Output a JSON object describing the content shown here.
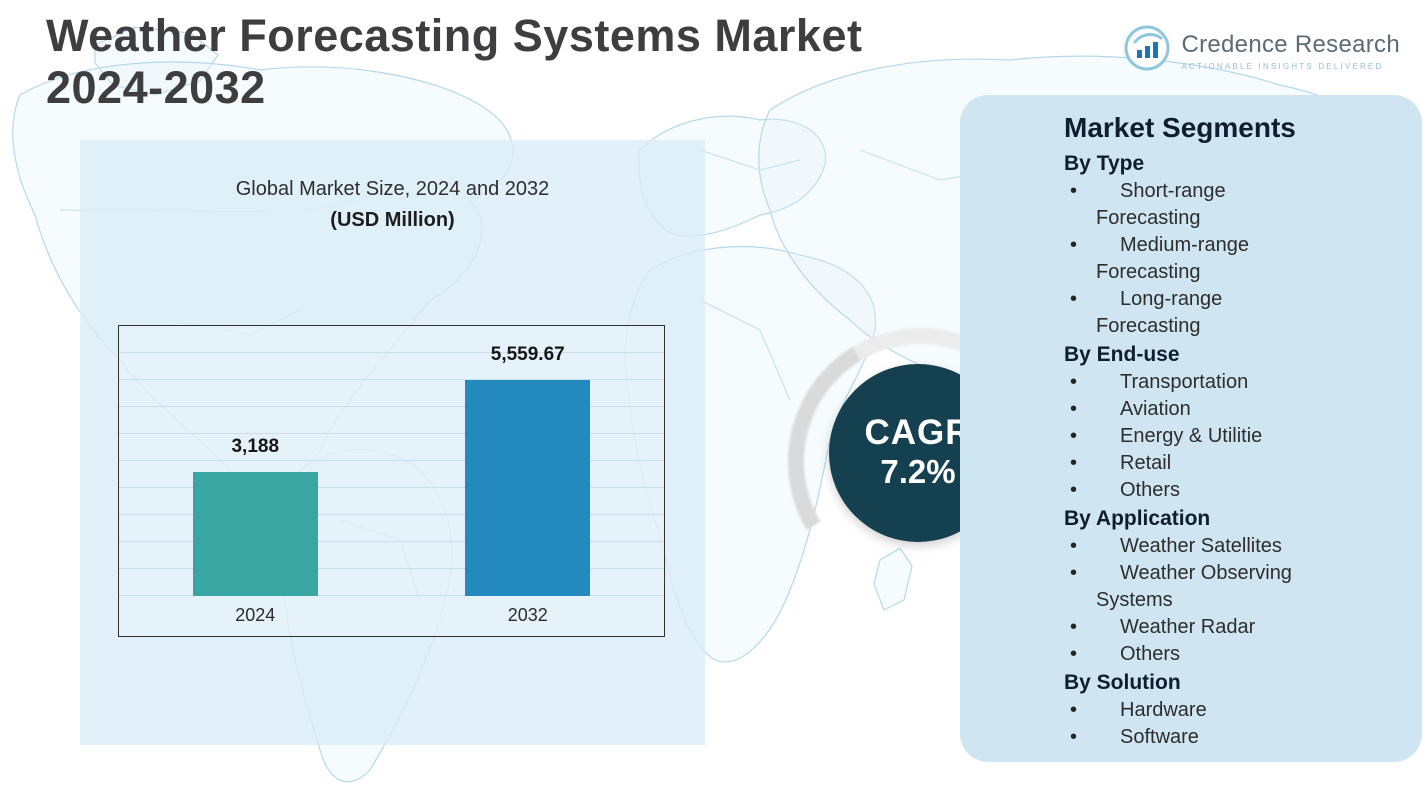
{
  "header": {
    "title_line1": "Weather Forecasting Systems Market",
    "title_line2": "2024-2032"
  },
  "logo": {
    "name": "Credence Research",
    "tagline": "ACTIONABLE INSIGHTS DELIVERED",
    "icon": "bar-chart-logo-icon"
  },
  "chart_panel": {
    "title": "Global Market Size, 2024 and 2032",
    "subtitle": "(USD Million)"
  },
  "chart_data": {
    "type": "bar",
    "title": "Global Market Size, 2024 and 2032",
    "unit": "USD Million",
    "categories": [
      "2024",
      "2032"
    ],
    "values": [
      3188,
      5559.67
    ],
    "value_labels": [
      "3,188",
      "5,559.67"
    ],
    "bar_colors": [
      "#3aa6a1",
      "#2489bd"
    ],
    "grid": true,
    "legend": false
  },
  "cagr": {
    "label": "CAGR",
    "value": "7.2%",
    "badge_color": "#14404f"
  },
  "segments": {
    "title": "Market Segments",
    "bullet": "•",
    "groups": [
      {
        "heading": "By Type",
        "items": [
          "Short-range\nForecasting",
          "Medium-range\nForecasting",
          "Long-range\nForecasting"
        ]
      },
      {
        "heading": "By End-use",
        "items": [
          "Transportation",
          "Aviation",
          "Energy & Utilitie",
          "Retail",
          "Others"
        ]
      },
      {
        "heading": "By Application",
        "items": [
          "Weather Satellites",
          "Weather Observing\nSystems",
          "Weather Radar",
          "Others"
        ]
      },
      {
        "heading": "By Solution",
        "items": [
          "Hardware",
          "Software"
        ]
      }
    ]
  },
  "colors": {
    "panel_blue": "#dbeef8",
    "segments_panel": "#cfe6f2",
    "accent_teal": "#3aa6a1",
    "accent_blue": "#2489bd",
    "cagr_navy": "#14404f",
    "title_gray": "#3e3e40",
    "map_line": "#b5d9ea"
  }
}
